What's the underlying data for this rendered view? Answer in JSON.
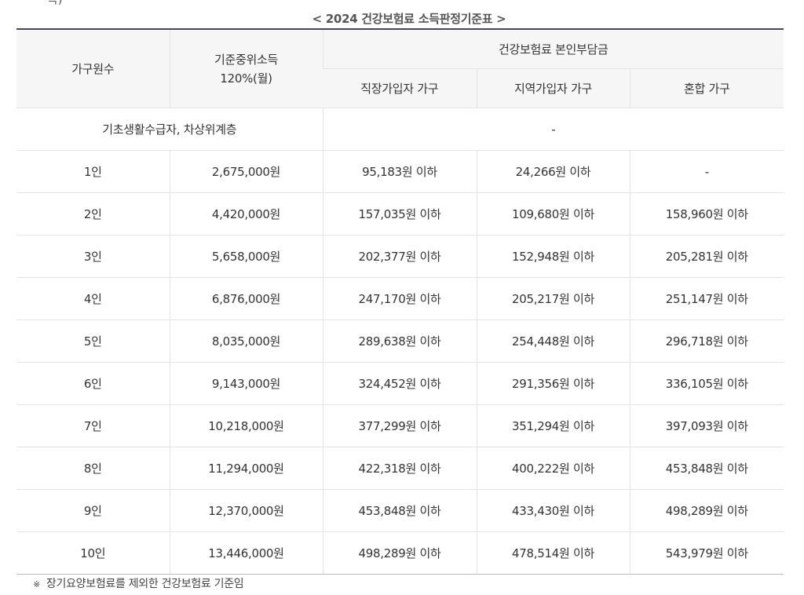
{
  "cut_text": "득)",
  "caption": "< 2024 건강보험료 소득판정기준표 >",
  "headers": {
    "household": "가구원수",
    "income_line1": "기준중위소득",
    "income_line2": "120%(월)",
    "premium_group": "건강보험료 본인부담금",
    "employee": "직장가입자 가구",
    "regional": "지역가입자 가구",
    "mixed": "혼합 가구"
  },
  "basic_row": {
    "label": "기초생활수급자, 차상위계층",
    "value": "-"
  },
  "rows": [
    [
      "1인",
      "2,675,000원",
      "95,183원 이하",
      "24,266원 이하",
      "-"
    ],
    [
      "2인",
      "4,420,000원",
      "157,035원 이하",
      "109,680원 이하",
      "158,960원 이하"
    ],
    [
      "3인",
      "5,658,000원",
      "202,377원 이하",
      "152,948원 이하",
      "205,281원 이하"
    ],
    [
      "4인",
      "6,876,000원",
      "247,170원 이하",
      "205,217원 이하",
      "251,147원 이하"
    ],
    [
      "5인",
      "8,035,000원",
      "289,638원 이하",
      "254,448원 이하",
      "296,718원 이하"
    ],
    [
      "6인",
      "9,143,000원",
      "324,452원 이하",
      "291,356원 이하",
      "336,105원 이하"
    ],
    [
      "7인",
      "10,218,000원",
      "377,299원 이하",
      "351,294원 이하",
      "397,093원 이하"
    ],
    [
      "8인",
      "11,294,000원",
      "422,318원 이하",
      "400,222원 이하",
      "453,848원 이하"
    ],
    [
      "9인",
      "12,370,000원",
      "453,848원 이하",
      "433,430원 이하",
      "498,289원 이하"
    ],
    [
      "10인",
      "13,446,000원",
      "498,289원 이하",
      "478,514원 이하",
      "543,979원 이하"
    ]
  ],
  "note": {
    "mark": "※",
    "text": "장기요양보험료를 제외한 건강보험료 기준임"
  }
}
